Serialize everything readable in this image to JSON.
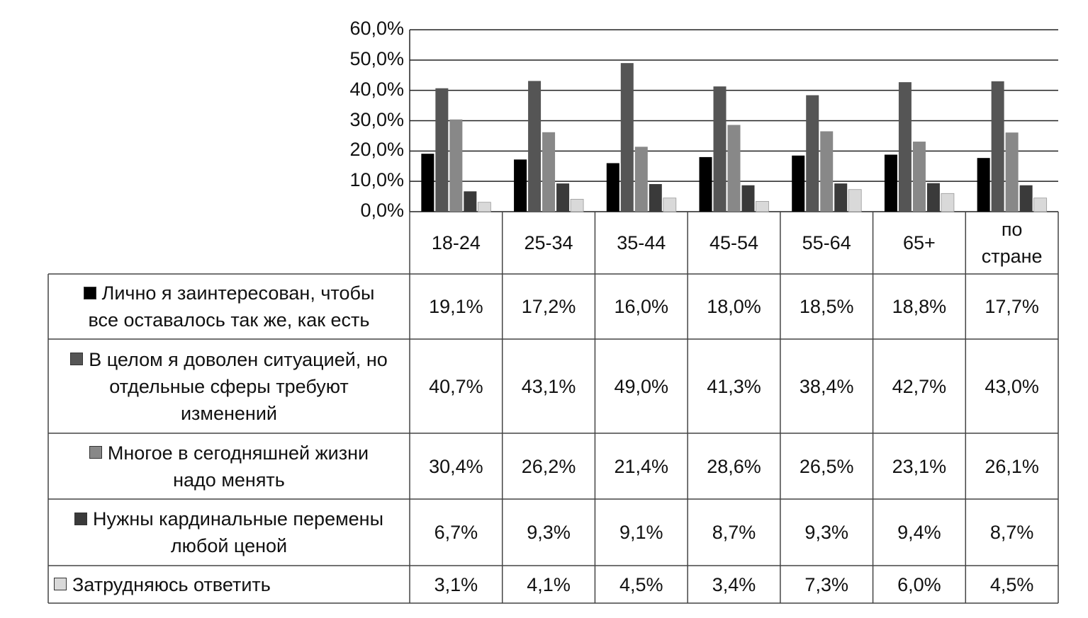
{
  "chart_data": {
    "type": "bar",
    "ylim": [
      0,
      60
    ],
    "y_ticks": [
      "0,0%",
      "10,0%",
      "20,0%",
      "30,0%",
      "40,0%",
      "50,0%",
      "60,0%"
    ],
    "grid": true,
    "legend": "table-left",
    "categories": [
      "18-24",
      "25-34",
      "35-44",
      "45-54",
      "55-64",
      "65+",
      "по стране"
    ],
    "series": [
      {
        "name": "Лично я заинтересован, чтобы все оставалось так же, как есть",
        "color": "#000000",
        "values": [
          19.1,
          17.2,
          16.0,
          18.0,
          18.5,
          18.8,
          17.7
        ],
        "labels": [
          "19,1%",
          "17,2%",
          "16,0%",
          "18,0%",
          "18,5%",
          "18,8%",
          "17,7%"
        ]
      },
      {
        "name": "В целом я доволен ситуацией, но отдельные сферы требуют изменений",
        "color": "#555555",
        "values": [
          40.7,
          43.1,
          49.0,
          41.3,
          38.4,
          42.7,
          43.0
        ],
        "labels": [
          "40,7%",
          "43,1%",
          "49,0%",
          "41,3%",
          "38,4%",
          "42,7%",
          "43,0%"
        ]
      },
      {
        "name": "Многое в сегодняшней жизни надо менять",
        "color": "#888888",
        "values": [
          30.4,
          26.2,
          21.4,
          28.6,
          26.5,
          23.1,
          26.1
        ],
        "labels": [
          "30,4%",
          "26,2%",
          "21,4%",
          "28,6%",
          "26,5%",
          "23,1%",
          "26,1%"
        ]
      },
      {
        "name": "Нужны кардинальные перемены любой ценой",
        "color": "#3a3a3a",
        "values": [
          6.7,
          9.3,
          9.1,
          8.7,
          9.3,
          9.4,
          8.7
        ],
        "labels": [
          "6,7%",
          "9,3%",
          "9,1%",
          "8,7%",
          "9,3%",
          "9,4%",
          "8,7%"
        ]
      },
      {
        "name": "Затрудняюсь ответить",
        "color": "#d9d9d9",
        "values": [
          3.1,
          4.1,
          4.5,
          3.4,
          7.3,
          6.0,
          4.5
        ],
        "labels": [
          "3,1%",
          "4,1%",
          "4,5%",
          "3,4%",
          "7,3%",
          "6,0%",
          "4,5%"
        ]
      }
    ]
  }
}
